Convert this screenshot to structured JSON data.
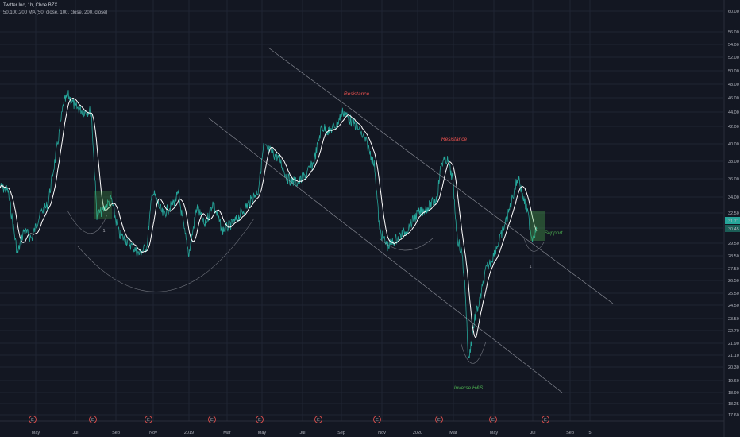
{
  "header": {
    "symbol_line": "Twitter Inc, 1h, Cboe BZX",
    "indicator_line": "50,100,200 MA (50, close, 100, close, 200, close)"
  },
  "colors": {
    "background": "#131722",
    "grid": "#1f2433",
    "price": "#26a69a",
    "ma": "#ffffff",
    "resistance": "#ef5350",
    "support": "#4caf50",
    "trendline": "#b2b5be",
    "earnings": "#ef5350"
  },
  "chart_data": {
    "type": "line",
    "price_axis": {
      "ticks": [
        "60.00",
        "56.00",
        "54.00",
        "52.00",
        "50.00",
        "48.00",
        "46.00",
        "44.00",
        "42.00",
        "40.00",
        "38.00",
        "36.00",
        "34.00",
        "32.50",
        "30.00",
        "29.50",
        "28.50",
        "27.50",
        "26.50",
        "25.50",
        "24.50",
        "23.50",
        "22.70",
        "21.90",
        "21.10",
        "20.30",
        "19.60",
        "18.90",
        "18.25",
        "17.60"
      ],
      "last_price_label": "31.71",
      "last_price_label_2": "30.45"
    },
    "time_axis": {
      "ticks": [
        "May",
        "Jul",
        "Sep",
        "Nov",
        "2019",
        "Mar",
        "May",
        "Jul",
        "Sep",
        "Nov",
        "2020",
        "Mar",
        "May",
        "Jul",
        "Sep",
        "5"
      ]
    },
    "annotations": [
      {
        "text": "Resistance",
        "color": "resistance"
      },
      {
        "text": "Resistance",
        "color": "resistance"
      },
      {
        "text": "Support",
        "color": "support"
      },
      {
        "text": "Inverse H&S",
        "color": "support"
      }
    ],
    "markers": [
      {
        "text": "1"
      },
      {
        "text": "1"
      }
    ],
    "earnings_labels": [
      "E",
      "E",
      "E",
      "E",
      "E",
      "E",
      "E",
      "E",
      "E",
      "E",
      "E"
    ]
  }
}
